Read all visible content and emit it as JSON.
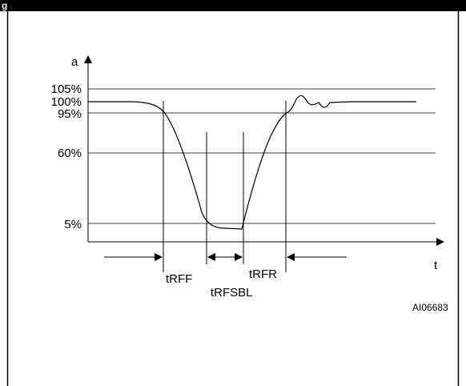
{
  "figure": {
    "header_fragment": "g",
    "id_code": "AI06683"
  },
  "axes": {
    "y_label": "a",
    "x_label": "t"
  },
  "levels": [
    {
      "key": "l105",
      "label": "105%",
      "value": 105
    },
    {
      "key": "l100",
      "label": "100%",
      "value": 100
    },
    {
      "key": "l95",
      "label": "95%",
      "value": 95
    },
    {
      "key": "l60",
      "label": "60%",
      "value": 60
    },
    {
      "key": "l5",
      "label": "5%",
      "value": 5
    }
  ],
  "intervals": [
    {
      "key": "tRFF",
      "label": "tRFF"
    },
    {
      "key": "tRFSBL",
      "label": "tRFSBL"
    },
    {
      "key": "tRFR",
      "label": "tRFR"
    }
  ]
}
